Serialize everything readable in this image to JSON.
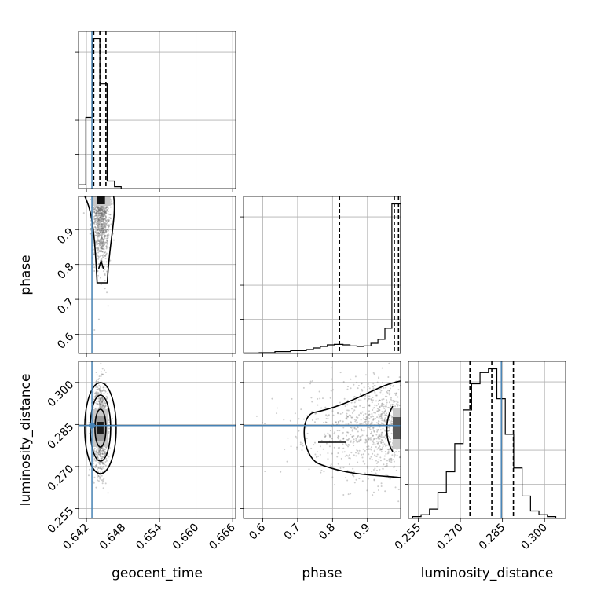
{
  "chart_data": {
    "type": "corner",
    "parameters": [
      {
        "name": "geocent_time",
        "ticks": [
          "0.642",
          "0.648",
          "0.654",
          "0.660",
          "0.666"
        ],
        "range": [
          0.6407,
          0.6665
        ]
      },
      {
        "name": "phase",
        "ticks": [
          "0.6",
          "0.7",
          "0.8",
          "0.9"
        ],
        "range": [
          0.545,
          0.995
        ]
      },
      {
        "name": "luminosity_distance",
        "ticks": [
          "0.255",
          "0.270",
          "0.285",
          "0.300"
        ],
        "range": [
          0.2515,
          0.3075
        ]
      }
    ],
    "truths": {
      "geocent_time": 0.6429,
      "luminosity_distance": 0.2846
    },
    "quantiles": {
      "geocent_time": [
        0.6432,
        0.6442,
        0.6452
      ],
      "phase": [
        0.82,
        0.977,
        0.989
      ],
      "luminosity_distance": [
        0.2734,
        0.2812,
        0.2889
      ]
    },
    "histograms": {
      "geocent_time": {
        "bins": [
          0.6407,
          0.6419,
          0.643,
          0.6442,
          0.6454,
          0.6466,
          0.6477
        ],
        "counts": [
          1,
          19,
          40,
          28,
          2,
          0.5
        ]
      },
      "phase": {
        "bins": [
          0.545,
          0.59,
          0.635,
          0.68,
          0.725,
          0.745,
          0.765,
          0.785,
          0.805,
          0.83,
          0.85,
          0.87,
          0.89,
          0.91,
          0.93,
          0.95,
          0.97,
          0.98,
          0.995
        ],
        "counts": [
          0.3,
          0.5,
          1.2,
          1.8,
          2.5,
          3.5,
          4.5,
          5.5,
          5.8,
          5.5,
          4.8,
          4.5,
          4.8,
          6.5,
          9,
          16,
          95,
          95
        ]
      },
      "luminosity_distance": {
        "bins": [
          0.253,
          0.256,
          0.259,
          0.262,
          0.265,
          0.268,
          0.271,
          0.274,
          0.277,
          0.28,
          0.283,
          0.286,
          0.289,
          0.292,
          0.295,
          0.298,
          0.301,
          0.304
        ],
        "counts": [
          1,
          2,
          5,
          14,
          25,
          40,
          58,
          72,
          78,
          80,
          64,
          45,
          27,
          12,
          4,
          2,
          1
        ]
      }
    },
    "density_peaks": {
      "geocent_time__phase": [
        0.6444,
        0.985
      ],
      "geocent_time__luminosity_distance": [
        0.6443,
        0.2837
      ],
      "phase__luminosity_distance": [
        0.985,
        0.2837
      ]
    },
    "grid": true
  }
}
